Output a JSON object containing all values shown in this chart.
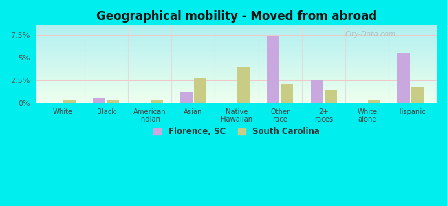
{
  "title": "Geographical mobility - Moved from abroad",
  "categories": [
    "White",
    "Black",
    "American\nIndian",
    "Asian",
    "Native\nHawaiian",
    "Other\nrace",
    "2+\nraces",
    "White\nalone",
    "Hispanic"
  ],
  "florence_values": [
    0.0,
    0.5,
    0.0,
    1.2,
    0.0,
    7.4,
    2.6,
    0.0,
    5.5
  ],
  "sc_values": [
    0.4,
    0.4,
    0.3,
    2.7,
    4.0,
    2.1,
    1.4,
    0.4,
    1.7
  ],
  "florence_color": "#c9a8e0",
  "sc_color": "#c8cc85",
  "figure_bg": "#00eeee",
  "plot_bg_top": "#b2f0f0",
  "plot_bg_bottom": "#eeffee",
  "ylim": [
    0,
    8.5
  ],
  "yticks": [
    0,
    2.5,
    5.0,
    7.5
  ],
  "ytick_labels": [
    "0%",
    "2.5%",
    "5%",
    "7.5%"
  ],
  "legend_florence": "Florence, SC",
  "legend_sc": "South Carolina",
  "watermark": "City-Data.com",
  "bar_width": 0.28,
  "grid_color": "#e8e8e8",
  "separator_color": "#dddddd"
}
